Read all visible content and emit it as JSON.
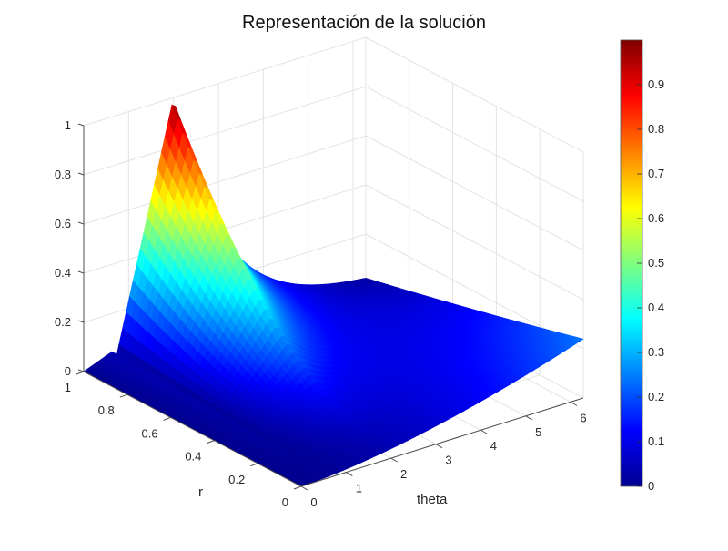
{
  "figure": {
    "title": "Representación de la solución"
  },
  "chart_data": {
    "type": "surface",
    "title": "Representación de la solución",
    "xlabel": "theta",
    "ylabel": "r",
    "zlabel": "",
    "x_ticks": [
      "0",
      "1",
      "2",
      "3",
      "4",
      "5",
      "6"
    ],
    "y_ticks": [
      "0",
      "0.2",
      "0.4",
      "0.6",
      "0.8",
      "1"
    ],
    "z_ticks": [
      "0",
      "0.2",
      "0.4",
      "0.6",
      "0.8",
      "1"
    ],
    "xlim": [
      0,
      6.2832
    ],
    "ylim": [
      0,
      1
    ],
    "zlim": [
      0,
      1
    ],
    "grid": true,
    "colormap": "jet",
    "surface_description": "u(r, theta) >= 0, zero along theta=0 and along r=0 edge near theta=0; peak value ~1 at r=1, theta≈2; decays toward theta=2*pi where u(r, 2*pi) rises ~linearly in r from 0 to ~0.24 at r=0",
    "key_points": [
      {
        "r": 1,
        "theta": 0,
        "z": 0
      },
      {
        "r": 1,
        "theta": 0.7,
        "z": 0.05
      },
      {
        "r": 1,
        "theta": 2.0,
        "z": 1.0
      },
      {
        "r": 0,
        "theta": 0,
        "z": 0
      },
      {
        "r": 0,
        "theta": 6.2832,
        "z": 0.24
      },
      {
        "r": 1,
        "theta": 6.2832,
        "z": 0.0
      }
    ],
    "colorbar": {
      "ticks": [
        "0",
        "0.1",
        "0.2",
        "0.3",
        "0.4",
        "0.5",
        "0.6",
        "0.7",
        "0.8",
        "0.9"
      ],
      "range": [
        0,
        1
      ],
      "position": "right"
    }
  }
}
